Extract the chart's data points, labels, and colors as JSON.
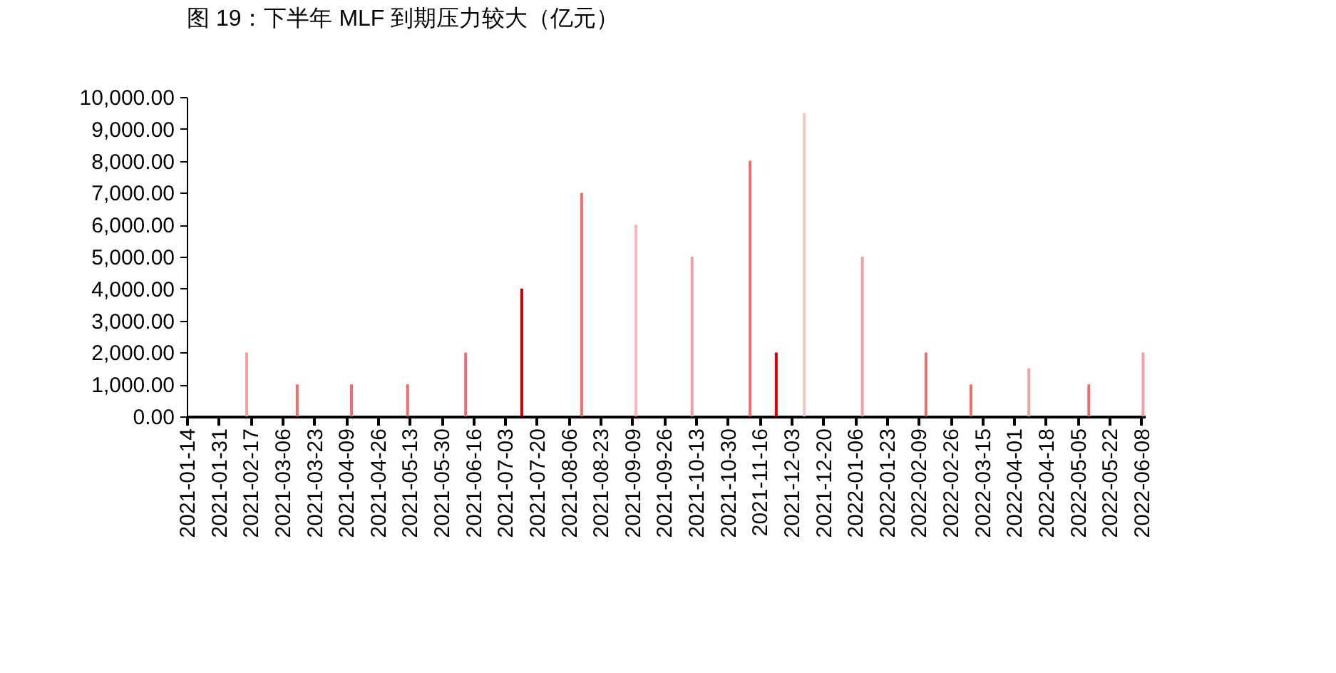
{
  "chart_data": {
    "type": "bar",
    "title": "图 19：下半年 MLF 到期压力较大（亿元）",
    "x": [
      "2021-02-15",
      "2021-03-14",
      "2021-04-12",
      "2021-05-12",
      "2021-06-12",
      "2021-07-12",
      "2021-08-13",
      "2021-09-11",
      "2021-10-11",
      "2021-11-11",
      "2021-11-25",
      "2021-12-10",
      "2022-01-10",
      "2022-02-13",
      "2022-03-09",
      "2022-04-09",
      "2022-05-11",
      "2022-06-09"
    ],
    "values": [
      2000,
      1000,
      1000,
      1000,
      2000,
      4000,
      7000,
      6000,
      5000,
      8000,
      2000,
      9500,
      5000,
      2000,
      1000,
      1500,
      1000,
      2000
    ],
    "colors": [
      "#f0a0a0",
      "#e87070",
      "#e87070",
      "#e87070",
      "#e87070",
      "#c00000",
      "#e87070",
      "#f4b6b6",
      "#f0a0a0",
      "#e87070",
      "#e00000",
      "#f4c8c8",
      "#f0a0a0",
      "#e87070",
      "#e87070",
      "#f0a0a0",
      "#e87070",
      "#f0a0a0"
    ],
    "xlim": [
      "2021-01-14",
      "2022-06-10"
    ],
    "xticks": [
      "2021-01-14",
      "2021-01-31",
      "2021-02-17",
      "2021-03-06",
      "2021-03-23",
      "2021-04-09",
      "2021-04-26",
      "2021-05-13",
      "2021-05-30",
      "2021-06-16",
      "2021-07-03",
      "2021-07-20",
      "2021-08-06",
      "2021-08-23",
      "2021-09-09",
      "2021-09-26",
      "2021-10-13",
      "2021-10-30",
      "2021-11-16",
      "2021-12-03",
      "2021-12-20",
      "2022-01-06",
      "2022-01-23",
      "2022-02-09",
      "2022-02-26",
      "2022-03-15",
      "2022-04-01",
      "2022-04-18",
      "2022-05-05",
      "2022-05-22",
      "2022-06-08"
    ],
    "ylim": [
      0,
      10000
    ],
    "yticks": [
      {
        "value": 0,
        "label": "0.00"
      },
      {
        "value": 1000,
        "label": "1,000.00"
      },
      {
        "value": 2000,
        "label": "2,000.00"
      },
      {
        "value": 3000,
        "label": "3,000.00"
      },
      {
        "value": 4000,
        "label": "4,000.00"
      },
      {
        "value": 5000,
        "label": "5,000.00"
      },
      {
        "value": 6000,
        "label": "6,000.00"
      },
      {
        "value": 7000,
        "label": "7,000.00"
      },
      {
        "value": 8000,
        "label": "8,000.00"
      },
      {
        "value": 9000,
        "label": "9,000.00"
      },
      {
        "value": 10000,
        "label": "10,000.00"
      }
    ],
    "grid": false,
    "legend": false
  }
}
